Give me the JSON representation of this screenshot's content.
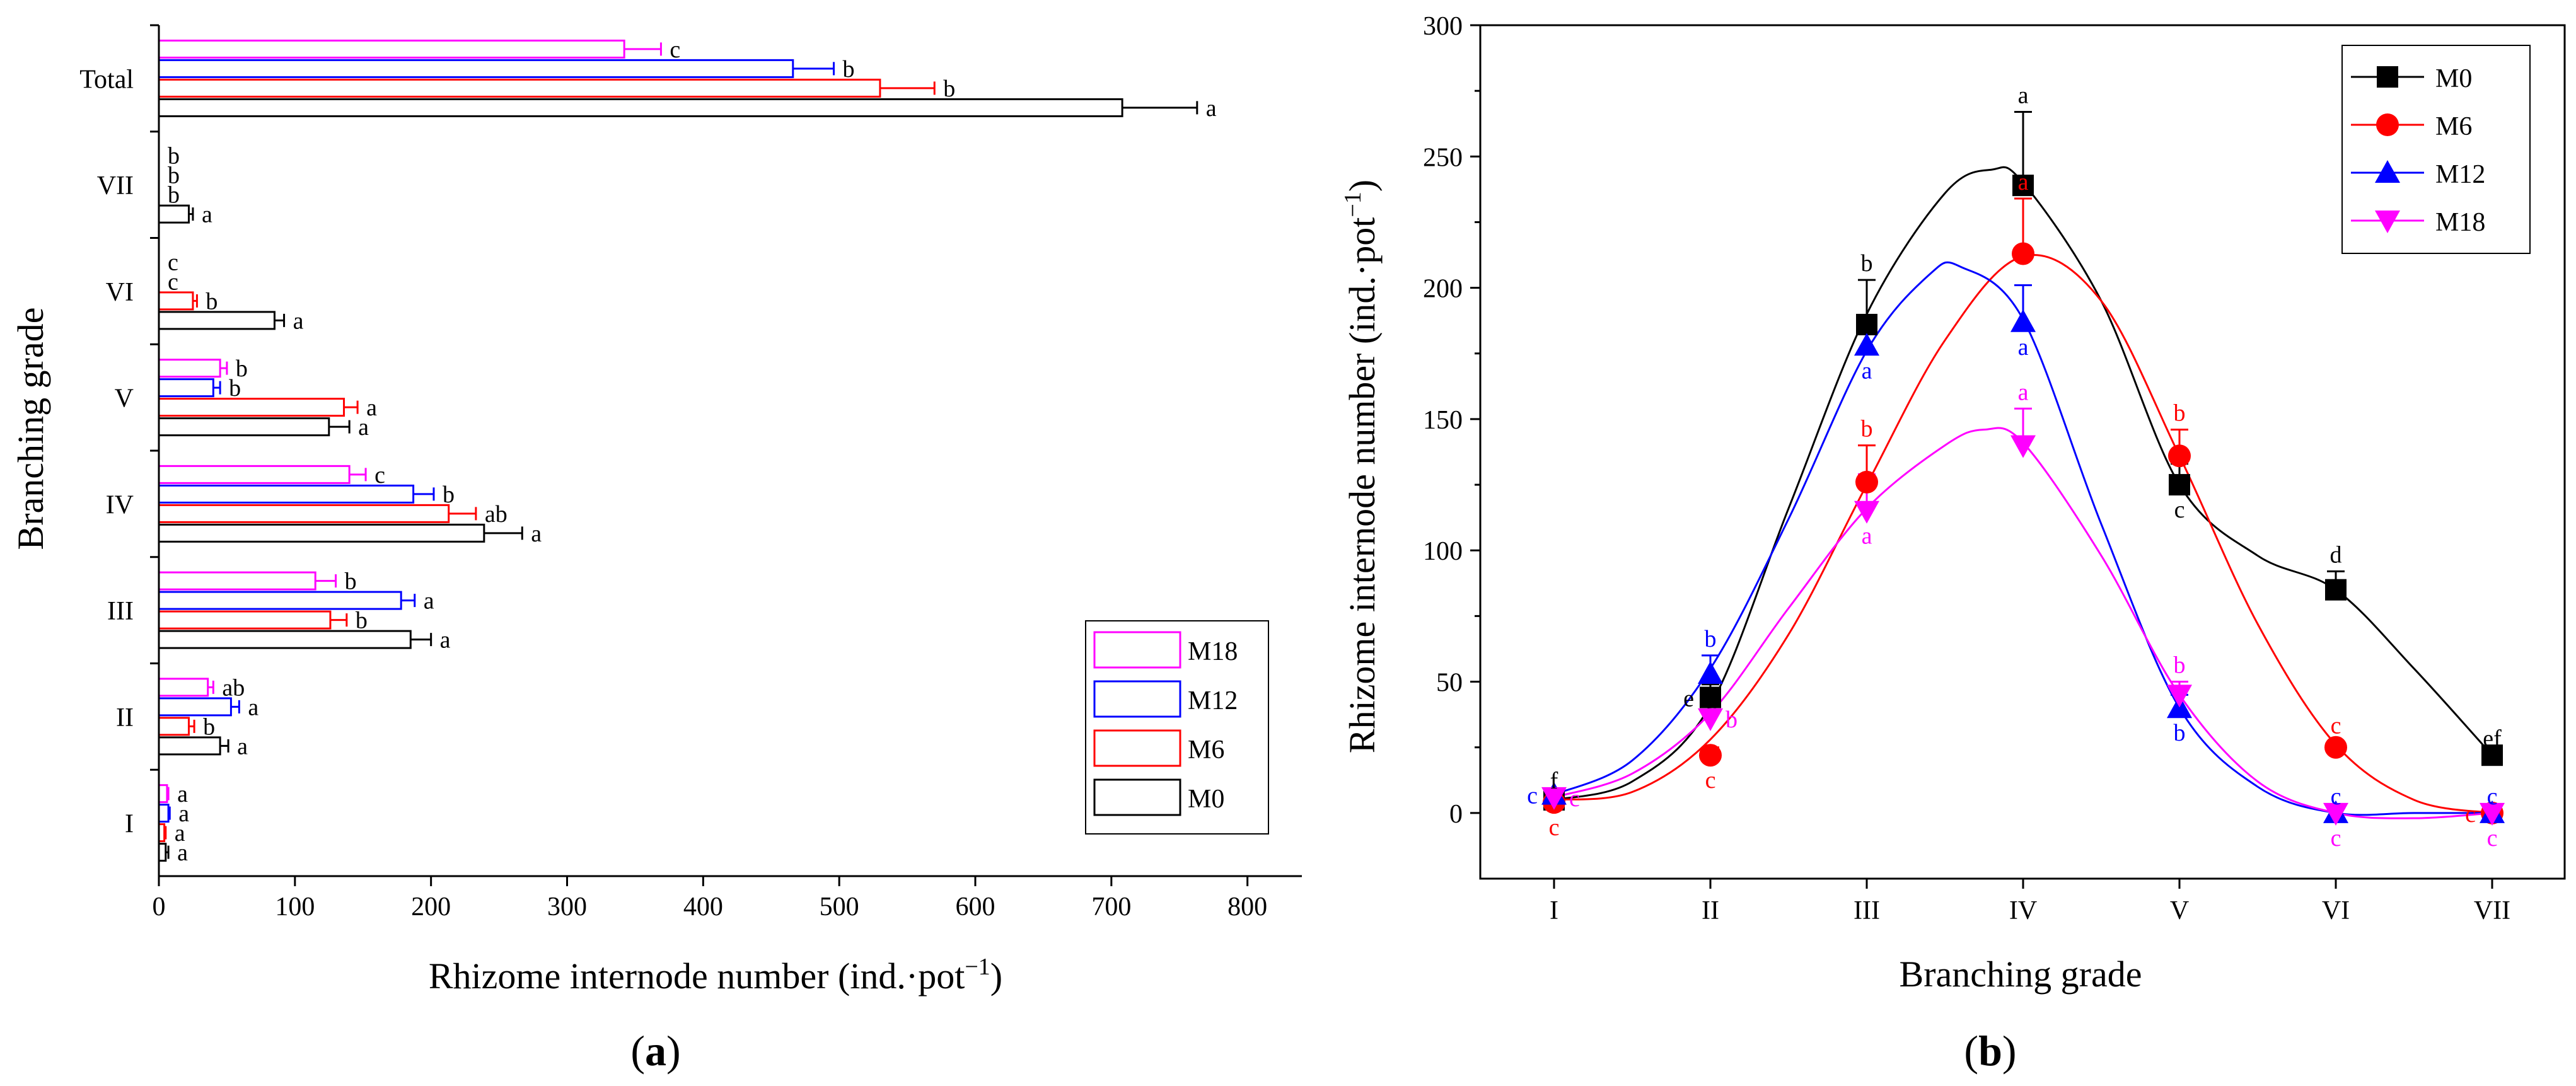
{
  "chart_data": [
    {
      "panel": "a",
      "type": "bar",
      "orientation": "horizontal",
      "title": "",
      "xlabel": "Rhizome internode number (ind.·pot",
      "xlabel_sup": "−1",
      "xlabel_end": ")",
      "ylabel": "Branching grade",
      "xlim": [
        0,
        840
      ],
      "xticks": [
        "0",
        "100",
        "200",
        "300",
        "400",
        "500",
        "600",
        "700",
        "800"
      ],
      "xtick_values": [
        0,
        100,
        200,
        300,
        400,
        500,
        600,
        700,
        800
      ],
      "categories": [
        "I",
        "II",
        "III",
        "IV",
        "V",
        "VI",
        "VII",
        "Total"
      ],
      "legend_placement": "bottom-right",
      "series": [
        {
          "name": "M0",
          "color": "#000000",
          "values": [
            5,
            45,
            185,
            239,
            125,
            85,
            22,
            708
          ],
          "errors": [
            2,
            6,
            15,
            28,
            15,
            7,
            3,
            55
          ],
          "letters": [
            "a",
            "a",
            "a",
            "a",
            "a",
            "a",
            "a",
            "a"
          ]
        },
        {
          "name": "M6",
          "color": "#ff0000",
          "values": [
            4,
            22,
            126,
            213,
            136,
            25,
            0,
            530
          ],
          "errors": [
            1,
            4,
            12,
            20,
            10,
            3,
            0,
            40
          ],
          "letters": [
            "a",
            "b",
            "b",
            "ab",
            "a",
            "b",
            "b",
            "b"
          ]
        },
        {
          "name": "M12",
          "color": "#0000ff",
          "values": [
            7,
            53,
            178,
            187,
            40,
            0,
            0,
            466
          ],
          "errors": [
            1,
            6,
            10,
            15,
            5,
            0,
            0,
            30
          ],
          "letters": [
            "a",
            "a",
            "a",
            "b",
            "b",
            "c",
            "b",
            "b"
          ]
        },
        {
          "name": "M18",
          "color": "#ff00ff",
          "values": [
            6,
            36,
            115,
            140,
            45,
            0,
            0,
            342
          ],
          "errors": [
            1,
            4,
            15,
            12,
            5,
            0,
            0,
            27
          ],
          "letters": [
            "a",
            "ab",
            "b",
            "c",
            "b",
            "c",
            "b",
            "c"
          ]
        }
      ],
      "panel_label": "a"
    },
    {
      "panel": "b",
      "type": "line",
      "title": "",
      "xlabel": "Branching grade",
      "ylabel": "Rhizome internode number (ind.·pot",
      "ylabel_sup": "−1",
      "ylabel_end": ")",
      "categories": [
        "I",
        "II",
        "III",
        "IV",
        "V",
        "VI",
        "VII"
      ],
      "ylim": [
        -25,
        300
      ],
      "yticks": [
        "0",
        "50",
        "100",
        "150",
        "200",
        "250",
        "300"
      ],
      "ytick_values": [
        0,
        50,
        100,
        150,
        200,
        250,
        300
      ],
      "legend_placement": "top-right",
      "series": [
        {
          "name": "M0",
          "color": "#000000",
          "marker": "square",
          "values": [
            5,
            44,
            186,
            239,
            125,
            85,
            22
          ],
          "errors": [
            1,
            5,
            17,
            28,
            8,
            7,
            0
          ],
          "letters": [
            "f",
            "e",
            "b",
            "a",
            "c",
            "d",
            "ef"
          ],
          "fit": [
            [
              1,
              5
            ],
            [
              1.5,
              12
            ],
            [
              2,
              41
            ],
            [
              2.5,
              116
            ],
            [
              3,
              190
            ],
            [
              3.5,
              236
            ],
            [
              3.8,
              245
            ],
            [
              4,
              240
            ],
            [
              4.5,
              195
            ],
            [
              5,
              125
            ],
            [
              5.5,
              98
            ],
            [
              6,
              85
            ],
            [
              6.5,
              55
            ],
            [
              7,
              22
            ]
          ]
        },
        {
          "name": "M6",
          "color": "#ff0000",
          "marker": "circle",
          "values": [
            4,
            22,
            126,
            213,
            136,
            25,
            0
          ],
          "errors": [
            1,
            3,
            14,
            21,
            10,
            2,
            0
          ],
          "letters": [
            "c",
            "c",
            "b",
            "a",
            "b",
            "c",
            "c"
          ],
          "fit": [
            [
              1,
              5
            ],
            [
              1.5,
              8
            ],
            [
              2,
              28
            ],
            [
              2.5,
              68
            ],
            [
              3,
              125
            ],
            [
              3.5,
              180
            ],
            [
              4,
              212
            ],
            [
              4.5,
              195
            ],
            [
              5,
              136
            ],
            [
              5.5,
              72
            ],
            [
              6,
              26
            ],
            [
              6.5,
              5
            ],
            [
              7,
              0
            ]
          ]
        },
        {
          "name": "M12",
          "color": "#0000ff",
          "marker": "triangle-up",
          "values": [
            7,
            53,
            178,
            187,
            40,
            0,
            0
          ],
          "errors": [
            1,
            7,
            10,
            14,
            5,
            0,
            0
          ],
          "letters": [
            "c",
            "b",
            "a",
            "a",
            "b",
            "c",
            "c"
          ],
          "fit": [
            [
              1,
              7
            ],
            [
              1.5,
              20
            ],
            [
              2,
              55
            ],
            [
              2.5,
              112
            ],
            [
              3,
              176
            ],
            [
              3.4,
              205
            ],
            [
              3.6,
              208
            ],
            [
              4,
              188
            ],
            [
              4.5,
              110
            ],
            [
              5,
              40
            ],
            [
              5.5,
              10
            ],
            [
              6,
              0
            ],
            [
              6.5,
              0
            ],
            [
              7,
              0
            ]
          ]
        },
        {
          "name": "M18",
          "color": "#ff00ff",
          "marker": "triangle-down",
          "values": [
            6,
            36,
            115,
            140,
            45,
            0,
            0
          ],
          "errors": [
            1,
            5,
            14,
            14,
            5,
            0,
            0
          ],
          "letters": [
            "c",
            "b",
            "a",
            "a",
            "b",
            "c",
            "c"
          ],
          "fit": [
            [
              1,
              6
            ],
            [
              1.5,
              15
            ],
            [
              2,
              38
            ],
            [
              2.5,
              78
            ],
            [
              3,
              116
            ],
            [
              3.5,
              140
            ],
            [
              3.75,
              146
            ],
            [
              4,
              141
            ],
            [
              4.5,
              98
            ],
            [
              5,
              45
            ],
            [
              5.5,
              12
            ],
            [
              6,
              0
            ],
            [
              6.5,
              -2
            ],
            [
              7,
              0
            ]
          ]
        }
      ],
      "panel_label": "b"
    }
  ]
}
